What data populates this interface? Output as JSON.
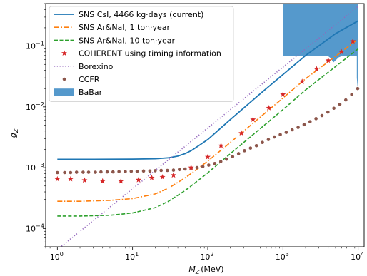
{
  "chart_data": {
    "type": "line",
    "xscale": "log",
    "yscale": "log",
    "xlim": [
      0.7,
      12000
    ],
    "ylim": [
      5e-05,
      0.5
    ],
    "xlabel_base": "M",
    "xlabel_sub": "Z′",
    "xlabel_unit": "(MeV)",
    "ylabel_base": "g",
    "ylabel_sub": "Z′",
    "xticks": [
      {
        "value": 1,
        "mant": "10",
        "exp": "0"
      },
      {
        "value": 10,
        "mant": "10",
        "exp": "1"
      },
      {
        "value": 100,
        "mant": "10",
        "exp": "2"
      },
      {
        "value": 1000,
        "mant": "10",
        "exp": "3"
      },
      {
        "value": 10000,
        "mant": "10",
        "exp": "4"
      }
    ],
    "yticks": [
      {
        "value": 0.0001,
        "mant": "10",
        "exp": "−4"
      },
      {
        "value": 0.001,
        "mant": "10",
        "exp": "−3"
      },
      {
        "value": 0.01,
        "mant": "10",
        "exp": "−2"
      },
      {
        "value": 0.1,
        "mant": "10",
        "exp": "−1"
      }
    ],
    "legend_position": "top-left",
    "series": [
      {
        "name": "SNS CsI, 4466 kg·days (current)",
        "style": "solid",
        "color": "#1f77b4",
        "x": [
          1,
          3,
          10,
          20,
          30,
          40,
          50,
          60,
          80,
          100,
          200,
          500,
          1000,
          2000,
          5000,
          10000
        ],
        "y": [
          0.00137,
          0.00137,
          0.00138,
          0.0014,
          0.00145,
          0.00155,
          0.0017,
          0.0019,
          0.0024,
          0.0029,
          0.0062,
          0.0165,
          0.034,
          0.07,
          0.16,
          0.26
        ]
      },
      {
        "name": "SNS Ar&NaI, 1 ton·year",
        "style": "dashdot",
        "color": "#ff7f0e",
        "x": [
          1,
          2,
          5,
          10,
          20,
          30,
          50,
          70,
          100,
          200,
          500,
          1000,
          2000,
          5000,
          10000
        ],
        "y": [
          0.00028,
          0.00028,
          0.00029,
          0.00031,
          0.00037,
          0.00046,
          0.00068,
          0.00092,
          0.00128,
          0.0026,
          0.0068,
          0.014,
          0.029,
          0.068,
          0.13
        ]
      },
      {
        "name": "SNS Ar&NaI, 10 ton·year",
        "style": "dashed",
        "color": "#2ca02c",
        "x": [
          1,
          2,
          5,
          10,
          20,
          30,
          50,
          70,
          100,
          200,
          500,
          1000,
          2000,
          5000,
          10000
        ],
        "y": [
          0.00016,
          0.00016,
          0.000165,
          0.00018,
          0.00022,
          0.00028,
          0.00042,
          0.00058,
          0.00082,
          0.0017,
          0.0044,
          0.009,
          0.019,
          0.046,
          0.09
        ]
      },
      {
        "name": "COHERENT using timing information",
        "style": "stars",
        "color": "#d62728",
        "x": [
          1,
          1.5,
          2.3,
          4,
          7,
          12,
          18,
          25,
          35,
          60,
          100,
          150,
          280,
          400,
          650,
          1000,
          1800,
          2800,
          4000,
          6000,
          8500
        ],
        "y": [
          0.00065,
          0.00065,
          0.00062,
          0.0006,
          0.0006,
          0.00063,
          0.00068,
          0.0007,
          0.00075,
          0.001,
          0.0015,
          0.0023,
          0.0037,
          0.0062,
          0.0096,
          0.016,
          0.026,
          0.042,
          0.058,
          0.08,
          0.12
        ]
      },
      {
        "name": "Borexino",
        "style": "dotted",
        "color": "#9467bd",
        "x": [
          1,
          10,
          100,
          1000,
          2000,
          4000,
          8000,
          10000
        ],
        "y": [
          4.5e-05,
          0.00045,
          0.0045,
          0.045,
          0.09,
          0.18,
          0.36,
          0.45
        ]
      },
      {
        "name": "CCFR",
        "style": "dots",
        "color": "#8c564b",
        "x": [
          1,
          1.25,
          1.5,
          1.8,
          2.2,
          2.6,
          3.2,
          3.8,
          4.6,
          5.5,
          6.6,
          8,
          9.6,
          11.5,
          14,
          17,
          20,
          24,
          29,
          35,
          42,
          50,
          60,
          72,
          86,
          103,
          124,
          149,
          178,
          214,
          257,
          308,
          370,
          444,
          533,
          640,
          768,
          921,
          1105,
          1326,
          1591,
          1910,
          2292,
          2750,
          3300,
          3960,
          4752,
          5702,
          6843,
          8211,
          9853
        ],
        "y": [
          0.00083,
          0.00083,
          0.00083,
          0.00084,
          0.00084,
          0.00084,
          0.00084,
          0.00085,
          0.00085,
          0.00085,
          0.00086,
          0.00086,
          0.00087,
          0.00087,
          0.00088,
          0.00088,
          0.00089,
          0.0009,
          0.0009,
          0.00091,
          0.00093,
          0.00095,
          0.00098,
          0.001,
          0.00104,
          0.0011,
          0.00117,
          0.00126,
          0.00138,
          0.00152,
          0.0017,
          0.0019,
          0.0021,
          0.0023,
          0.0026,
          0.0029,
          0.0032,
          0.0035,
          0.0038,
          0.0042,
          0.0046,
          0.0051,
          0.0057,
          0.0064,
          0.0072,
          0.0082,
          0.0095,
          0.011,
          0.013,
          0.016,
          0.02
        ]
      },
      {
        "name": "BaBar",
        "style": "area",
        "color": "#5599cc",
        "polygon_x": [
          1000,
          1000,
          10000,
          10000,
          9800,
          9500,
          9200,
          8900,
          8600,
          8300,
          8000,
          7000,
          6000,
          5000,
          4400,
          4300,
          4000,
          3000,
          2000,
          1000
        ],
        "polygon_y": [
          0.5,
          0.068,
          0.068,
          0.5,
          0.5,
          0.5,
          0.5,
          0.5,
          0.5,
          0.5,
          0.5,
          0.5,
          0.5,
          0.5,
          0.5,
          0.5,
          0.5,
          0.5,
          0.5,
          0.5
        ],
        "notch_x": [
          4000,
          4400,
          4500,
          4700,
          5000,
          5500,
          6000,
          7000,
          8000,
          9000,
          9800,
          10000,
          10000,
          4000
        ],
        "notch_y": [
          0.068,
          0.062,
          0.058,
          0.054,
          0.058,
          0.065,
          0.068,
          0.068,
          0.068,
          0.068,
          0.068,
          0.068,
          0.068,
          0.068
        ],
        "tail_x": [
          9600,
          9600,
          9700,
          9800,
          9900,
          10000,
          10000,
          9600
        ],
        "tail_y": [
          0.068,
          0.03,
          0.025,
          0.022,
          0.021,
          0.02,
          0.068,
          0.068
        ]
      }
    ]
  }
}
